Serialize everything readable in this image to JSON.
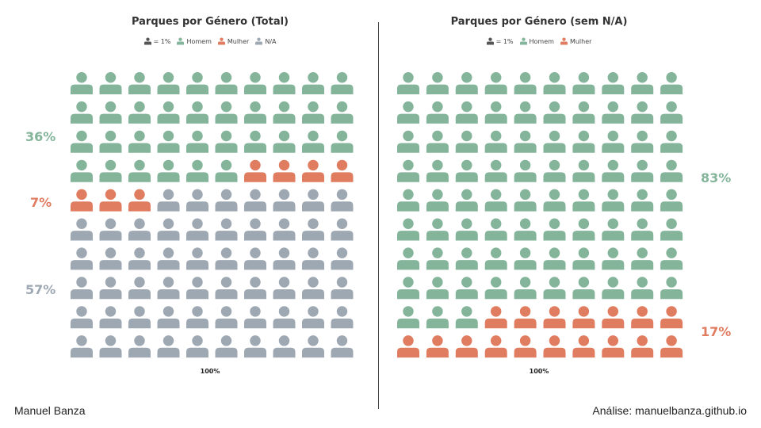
{
  "colors": {
    "homem": "#84b59b",
    "mulher": "#e07c60",
    "na": "#9ea8b3",
    "unit": "#555555"
  },
  "icon": "person-icon",
  "chart_data": [
    {
      "type": "waffle",
      "title": "Parques por Género (Total)",
      "xlabel": "100%",
      "grid": [
        10,
        10
      ],
      "legend": [
        {
          "label": "= 1%",
          "color": "#555555"
        },
        {
          "label": "Homem",
          "color": "#84b59b"
        },
        {
          "label": "Mulher",
          "color": "#e07c60"
        },
        {
          "label": "N/A",
          "color": "#9ea8b3"
        }
      ],
      "series": [
        {
          "name": "Homem",
          "value": 36,
          "label": "36%",
          "color": "#84b59b"
        },
        {
          "name": "Mulher",
          "value": 7,
          "label": "7%",
          "color": "#e07c60"
        },
        {
          "name": "N/A",
          "value": 57,
          "label": "57%",
          "color": "#9ea8b3"
        }
      ]
    },
    {
      "type": "waffle",
      "title": "Parques por Género (sem N/A)",
      "xlabel": "100%",
      "grid": [
        10,
        10
      ],
      "legend": [
        {
          "label": "= 1%",
          "color": "#555555"
        },
        {
          "label": "Homem",
          "color": "#84b59b"
        },
        {
          "label": "Mulher",
          "color": "#e07c60"
        }
      ],
      "series": [
        {
          "name": "Homem",
          "value": 83,
          "label": "83%",
          "color": "#84b59b"
        },
        {
          "name": "Mulher",
          "value": 17,
          "label": "17%",
          "color": "#e07c60"
        }
      ]
    }
  ],
  "footer": {
    "author": "Manuel Banza",
    "source": "Análise: manuelbanza.github.io"
  }
}
